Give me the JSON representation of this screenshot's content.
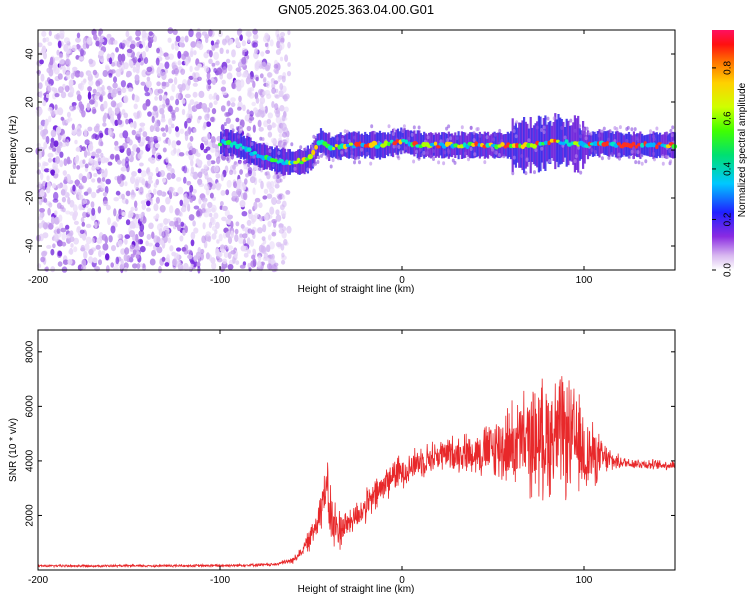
{
  "figure_title": "GN05.2025.363.04.00.G01",
  "chart_data": [
    {
      "type": "heatmap",
      "name": "spectrogram",
      "xlabel": "Height of straight line (km)",
      "ylabel": "Frequency (Hz)",
      "xlim": [
        -200,
        150
      ],
      "ylim": [
        -50,
        50
      ],
      "xticks": [
        -200,
        -100,
        0,
        100
      ],
      "yticks": [
        -40,
        -20,
        0,
        20,
        40
      ],
      "colorbar": {
        "label": "Normalized spectral amplitude",
        "range": [
          0,
          0.95
        ],
        "ticks": [
          0.0,
          0.2,
          0.4,
          0.6,
          0.8
        ],
        "tick_labels": [
          "0.0",
          "0.2",
          "0.4",
          "0.6",
          "0.8"
        ]
      },
      "noise_region_x": [
        -200,
        -62
      ],
      "signal_track": {
        "x": [
          -100,
          -95,
          -90,
          -85,
          -80,
          -75,
          -70,
          -65,
          -60,
          -55,
          -50,
          -47,
          -45,
          -40,
          -30,
          -20,
          -10,
          0,
          10,
          20,
          30,
          40,
          50,
          60,
          70,
          80,
          85,
          90,
          100,
          110,
          120,
          130,
          140,
          150
        ],
        "y": [
          3,
          3,
          2,
          0,
          -2,
          -3,
          -4,
          -5,
          -5,
          -5,
          -3,
          2,
          4,
          1,
          2,
          2,
          2,
          4,
          2,
          2,
          2,
          2,
          2,
          2,
          2,
          3,
          4,
          3,
          2,
          3,
          2,
          2,
          2,
          2
        ]
      }
    },
    {
      "type": "line",
      "name": "snr",
      "xlabel": "Height of straight line (km)",
      "ylabel": "SNR (10 * v/v)",
      "xlim": [
        -200,
        150
      ],
      "ylim": [
        0,
        8800
      ],
      "xticks": [
        -200,
        -100,
        0,
        100
      ],
      "yticks": [
        2000,
        4000,
        6000,
        8000
      ],
      "series": [
        {
          "name": "SNR",
          "color": "#e8282a",
          "x": [
            -200,
            -150,
            -100,
            -70,
            -60,
            -55,
            -50,
            -45,
            -42,
            -40,
            -38,
            -35,
            -30,
            -25,
            -20,
            -15,
            -10,
            -5,
            0,
            5,
            10,
            20,
            30,
            40,
            50,
            60,
            70,
            80,
            85,
            90,
            95,
            100,
            105,
            110,
            115,
            120,
            130,
            140,
            150
          ],
          "y": [
            150,
            150,
            160,
            200,
            350,
            700,
            1200,
            2200,
            3000,
            2400,
            1600,
            1500,
            1700,
            2000,
            2300,
            2700,
            3100,
            3500,
            3600,
            3800,
            4000,
            4200,
            4300,
            4300,
            4400,
            4600,
            4700,
            4900,
            5000,
            4900,
            4700,
            4300,
            4200,
            4100,
            4000,
            3950,
            3900,
            3850,
            3850
          ]
        }
      ],
      "envelope_amplitude": {
        "x": [
          -200,
          -70,
          -55,
          -45,
          -40,
          -30,
          -10,
          0,
          20,
          40,
          50,
          60,
          70,
          80,
          90,
          100,
          110,
          120,
          150
        ],
        "y": [
          50,
          60,
          200,
          900,
          1500,
          600,
          800,
          700,
          700,
          900,
          1400,
          1800,
          2300,
          2600,
          2600,
          2000,
          800,
          250,
          200
        ]
      }
    }
  ]
}
